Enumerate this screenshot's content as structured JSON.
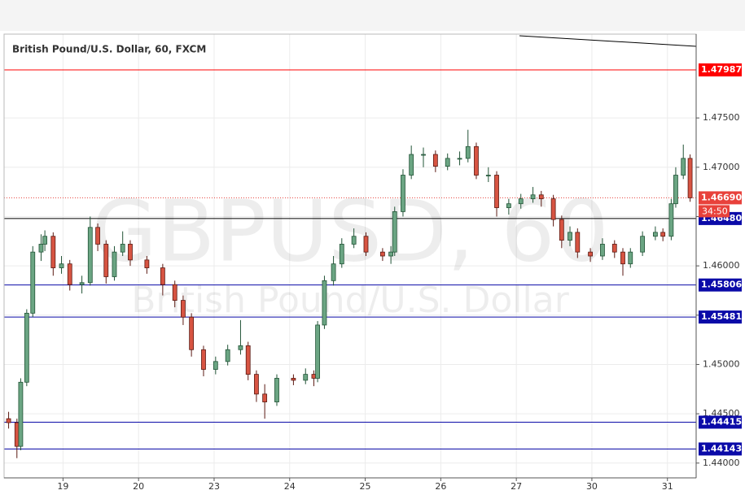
{
  "chart_data": {
    "type": "candlestick",
    "title": "British Pound/U.S. Dollar, 60, FXCM",
    "watermark": "GBPUSD, 60",
    "watermark_subtitle": "British Pound/U.S. Dollar",
    "xlim": [
      0.22,
      9.38
    ],
    "xticks": [
      {
        "value": 1,
        "label": "19"
      },
      {
        "value": 2,
        "label": "20"
      },
      {
        "value": 3,
        "label": "23"
      },
      {
        "value": 4,
        "label": "24"
      },
      {
        "value": 5,
        "label": "25"
      },
      {
        "value": 6,
        "label": "26"
      },
      {
        "value": 7,
        "label": "27"
      },
      {
        "value": 8,
        "label": "30"
      },
      {
        "value": 9,
        "label": "31"
      }
    ],
    "ylim": [
      1.4385,
      1.4835
    ],
    "yticks": [
      {
        "value": 1.44,
        "label": "1.44000"
      },
      {
        "value": 1.445,
        "label": "1.44500"
      },
      {
        "value": 1.45,
        "label": "1.45000"
      },
      {
        "value": 1.455,
        "label": "1.45500"
      },
      {
        "value": 1.46,
        "label": "1.46000"
      },
      {
        "value": 1.465,
        "label": "1.46500"
      },
      {
        "value": 1.47,
        "label": "1.47000"
      },
      {
        "value": 1.475,
        "label": "1.47500"
      }
    ],
    "grid": true,
    "up_color": "#6ba583",
    "down_color": "#d75442",
    "x": [
      0.28,
      0.39,
      0.44,
      0.52,
      0.6,
      0.71,
      0.76,
      0.87,
      0.98,
      1.09,
      1.25,
      1.36,
      1.46,
      1.57,
      1.68,
      1.79,
      1.89,
      2.11,
      2.32,
      2.48,
      2.59,
      2.7,
      2.86,
      3.02,
      3.18,
      3.35,
      3.45,
      3.56,
      3.67,
      3.83,
      4.05,
      4.21,
      4.32,
      4.37,
      4.46,
      4.58,
      4.69,
      4.85,
      5.01,
      5.23,
      5.34,
      5.39,
      5.5,
      5.61,
      5.77,
      5.93,
      6.09,
      6.25,
      6.36,
      6.47,
      6.63,
      6.74,
      6.9,
      7.06,
      7.22,
      7.33,
      7.49,
      7.6,
      7.71,
      7.81,
      7.98,
      8.14,
      8.3,
      8.41,
      8.51,
      8.67,
      8.84,
      8.94,
      9.05,
      9.11,
      9.21,
      9.3
    ],
    "open": [
      1.4445,
      1.4441,
      1.4417,
      1.4482,
      1.4552,
      1.4614,
      1.4622,
      1.463,
      1.4598,
      1.4602,
      1.4581,
      1.4583,
      1.4639,
      1.4622,
      1.4589,
      1.4614,
      1.4622,
      1.4606,
      1.4598,
      1.4581,
      1.4565,
      1.4548,
      1.4515,
      1.4495,
      1.4503,
      1.4515,
      1.4519,
      1.449,
      1.447,
      1.4462,
      1.4486,
      1.4484,
      1.449,
      1.4486,
      1.454,
      1.4585,
      1.4602,
      1.4622,
      1.463,
      1.4614,
      1.461,
      1.4614,
      1.4655,
      1.4692,
      1.4713,
      1.4713,
      1.4701,
      1.4709,
      1.4709,
      1.4721,
      1.4692,
      1.4692,
      1.4659,
      1.4663,
      1.4668,
      1.4672,
      1.4668,
      1.4647,
      1.4626,
      1.4634,
      1.4614,
      1.461,
      1.4622,
      1.4614,
      1.4602,
      1.4614,
      1.463,
      1.4634,
      1.463,
      1.4663,
      1.4692,
      1.4709
    ],
    "high": [
      1.4452,
      1.4445,
      1.4486,
      1.4556,
      1.462,
      1.4632,
      1.4636,
      1.4634,
      1.461,
      1.4606,
      1.459,
      1.465,
      1.4643,
      1.4626,
      1.462,
      1.4635,
      1.4626,
      1.461,
      1.4602,
      1.4585,
      1.457,
      1.4552,
      1.4519,
      1.4508,
      1.452,
      1.4545,
      1.4523,
      1.4494,
      1.448,
      1.449,
      1.449,
      1.4496,
      1.4494,
      1.4544,
      1.459,
      1.461,
      1.4628,
      1.4638,
      1.4634,
      1.4618,
      1.462,
      1.466,
      1.4698,
      1.4722,
      1.472,
      1.4717,
      1.4714,
      1.4716,
      1.4738,
      1.4725,
      1.47,
      1.4696,
      1.4668,
      1.4673,
      1.468,
      1.4676,
      1.4672,
      1.4651,
      1.464,
      1.4638,
      1.4618,
      1.4628,
      1.4626,
      1.4618,
      1.4618,
      1.4635,
      1.464,
      1.4638,
      1.4668,
      1.47,
      1.4723,
      1.4713
    ],
    "low": [
      1.4435,
      1.4405,
      1.4413,
      1.4478,
      1.4548,
      1.4605,
      1.4615,
      1.459,
      1.4592,
      1.4575,
      1.4572,
      1.458,
      1.4615,
      1.4582,
      1.4585,
      1.461,
      1.46,
      1.4592,
      1.457,
      1.4558,
      1.454,
      1.4508,
      1.4488,
      1.449,
      1.4499,
      1.451,
      1.4484,
      1.4462,
      1.4445,
      1.4458,
      1.4479,
      1.448,
      1.4478,
      1.4482,
      1.4536,
      1.458,
      1.4598,
      1.4618,
      1.461,
      1.4605,
      1.4602,
      1.461,
      1.465,
      1.4688,
      1.47,
      1.4695,
      1.4697,
      1.4702,
      1.4705,
      1.4688,
      1.4685,
      1.465,
      1.4652,
      1.4658,
      1.4664,
      1.466,
      1.464,
      1.4618,
      1.462,
      1.4608,
      1.4604,
      1.4606,
      1.4608,
      1.459,
      1.4598,
      1.461,
      1.4626,
      1.4625,
      1.4626,
      1.4659,
      1.4688,
      1.4665
    ],
    "close": [
      1.4441,
      1.4417,
      1.4482,
      1.4552,
      1.4614,
      1.4622,
      1.463,
      1.4598,
      1.4602,
      1.4581,
      1.4583,
      1.4639,
      1.4622,
      1.4589,
      1.4614,
      1.4622,
      1.4606,
      1.4598,
      1.4581,
      1.4565,
      1.4548,
      1.4515,
      1.4495,
      1.4503,
      1.4515,
      1.4519,
      1.449,
      1.447,
      1.4462,
      1.4486,
      1.4484,
      1.449,
      1.4486,
      1.454,
      1.4585,
      1.4602,
      1.4622,
      1.463,
      1.4614,
      1.461,
      1.4614,
      1.4655,
      1.4692,
      1.4713,
      1.4713,
      1.4701,
      1.4709,
      1.4709,
      1.4721,
      1.4692,
      1.4692,
      1.4659,
      1.4663,
      1.4668,
      1.4672,
      1.4668,
      1.4647,
      1.4626,
      1.4634,
      1.4614,
      1.461,
      1.4622,
      1.4614,
      1.4602,
      1.4614,
      1.463,
      1.4634,
      1.463,
      1.4663,
      1.4692,
      1.4709,
      1.4669
    ],
    "levels": [
      {
        "price": 1.47987,
        "color": "#ff0000"
      },
      {
        "price": {
          "value": 1.4648,
          "label": "1.46480"
        },
        "color": "#0a0aa8",
        "line_color": "#000000"
      },
      {
        "price": 1.45806,
        "color": "#0a0aa8"
      },
      {
        "price": 1.45481,
        "color": "#0a0aa8"
      },
      {
        "price": 1.44415,
        "color": "#0a0aa8"
      },
      {
        "price": 1.44143,
        "color": "#0a0aa8"
      }
    ],
    "current": {
      "price": {
        "value": 1.4669,
        "label": "1.46690"
      },
      "color": "#e8413b",
      "countdown": "34:50"
    }
  }
}
